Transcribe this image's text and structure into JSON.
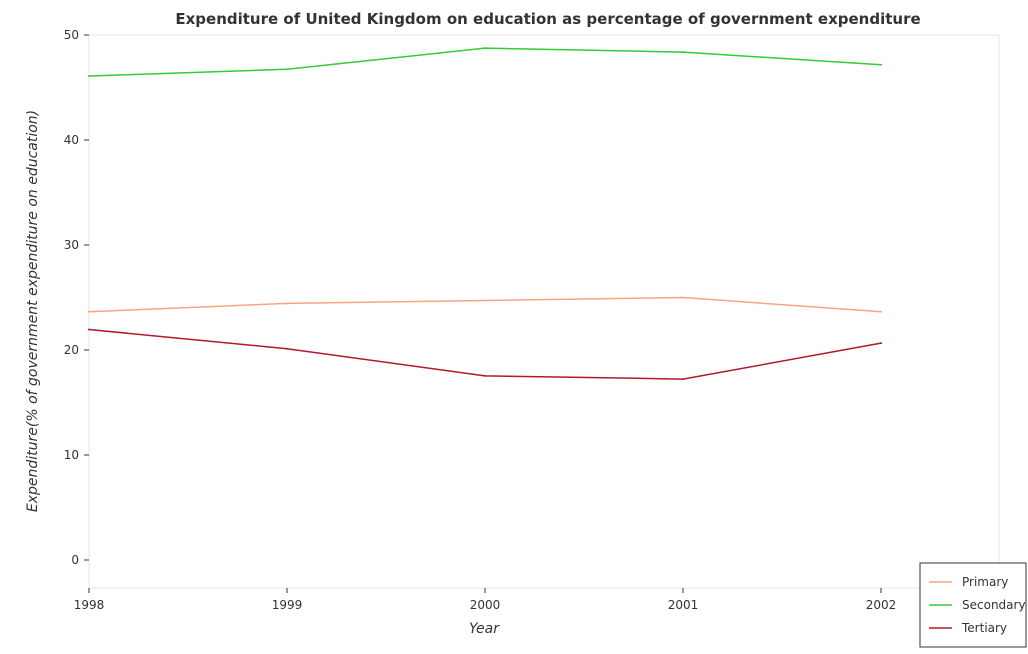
{
  "chart_data": {
    "type": "line",
    "title": "Expenditure of United Kingdom on education as percentage of government expenditure",
    "xlabel": "Year",
    "ylabel": "Expenditure(% of government expenditure on education)",
    "x": [
      "1998",
      "1999",
      "2000",
      "2001",
      "2002"
    ],
    "ylim": [
      0,
      50
    ],
    "yticks": [
      0,
      10,
      20,
      30,
      40,
      50
    ],
    "grid": false,
    "legend_position": "bottom-right",
    "series": [
      {
        "name": "Primary",
        "color": "#f4a582",
        "values": [
          23.64,
          24.44,
          24.72,
          25.0,
          23.64
        ]
      },
      {
        "name": "Secondary",
        "color": "#33cc33",
        "values": [
          46.09,
          46.74,
          48.75,
          48.37,
          47.17
        ]
      },
      {
        "name": "Tertiary",
        "color": "#b2182b",
        "values": [
          21.95,
          20.12,
          17.54,
          17.23,
          20.65
        ]
      }
    ]
  }
}
